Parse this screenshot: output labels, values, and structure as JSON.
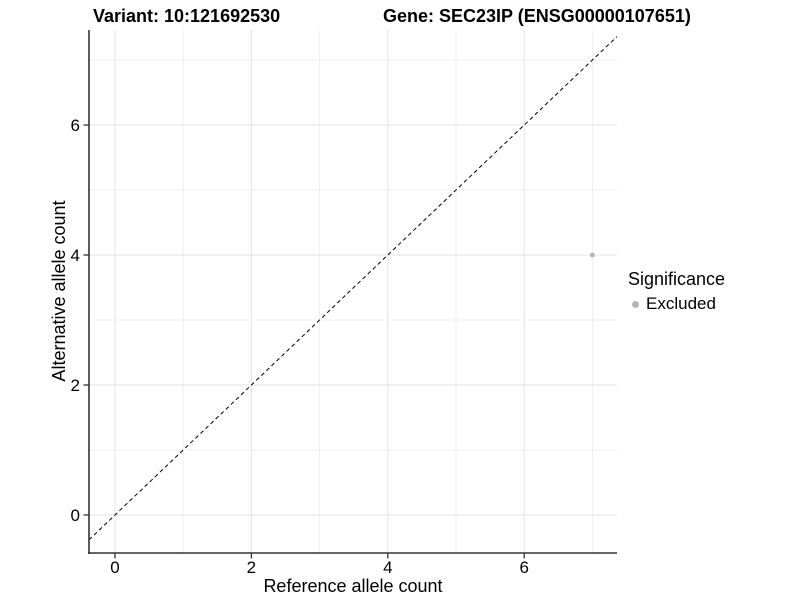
{
  "header": {
    "variant_title": "Variant: 10:121692530",
    "gene_title": "Gene: SEC23IP (ENSG00000107651)"
  },
  "chart_data": {
    "type": "scatter",
    "xlabel": "Reference allele count",
    "ylabel": "Alternative allele count",
    "x_ticks": [
      0,
      2,
      4,
      6
    ],
    "y_ticks": [
      0,
      2,
      4,
      6
    ],
    "xlim": [
      -0.4,
      7.4
    ],
    "ylim": [
      -0.6,
      7.5
    ],
    "grid": "major at even integers, minor at odd integers",
    "points": [
      {
        "x": 7,
        "y": 4,
        "significance": "Excluded"
      }
    ],
    "identity_line": {
      "equation": "y = x",
      "style": "dashed",
      "color": "#000000"
    },
    "legend": {
      "title": "Significance",
      "position": "right",
      "entries": [
        {
          "label": "Excluded",
          "color": "#b4b4b4"
        }
      ]
    },
    "colors": {
      "background": "#ffffff",
      "point": "#b4b4b4",
      "grid_major": "#e4e4e4",
      "grid_minor": "#efefef",
      "axis_line": "#333333",
      "tick_text": "#000000"
    }
  }
}
